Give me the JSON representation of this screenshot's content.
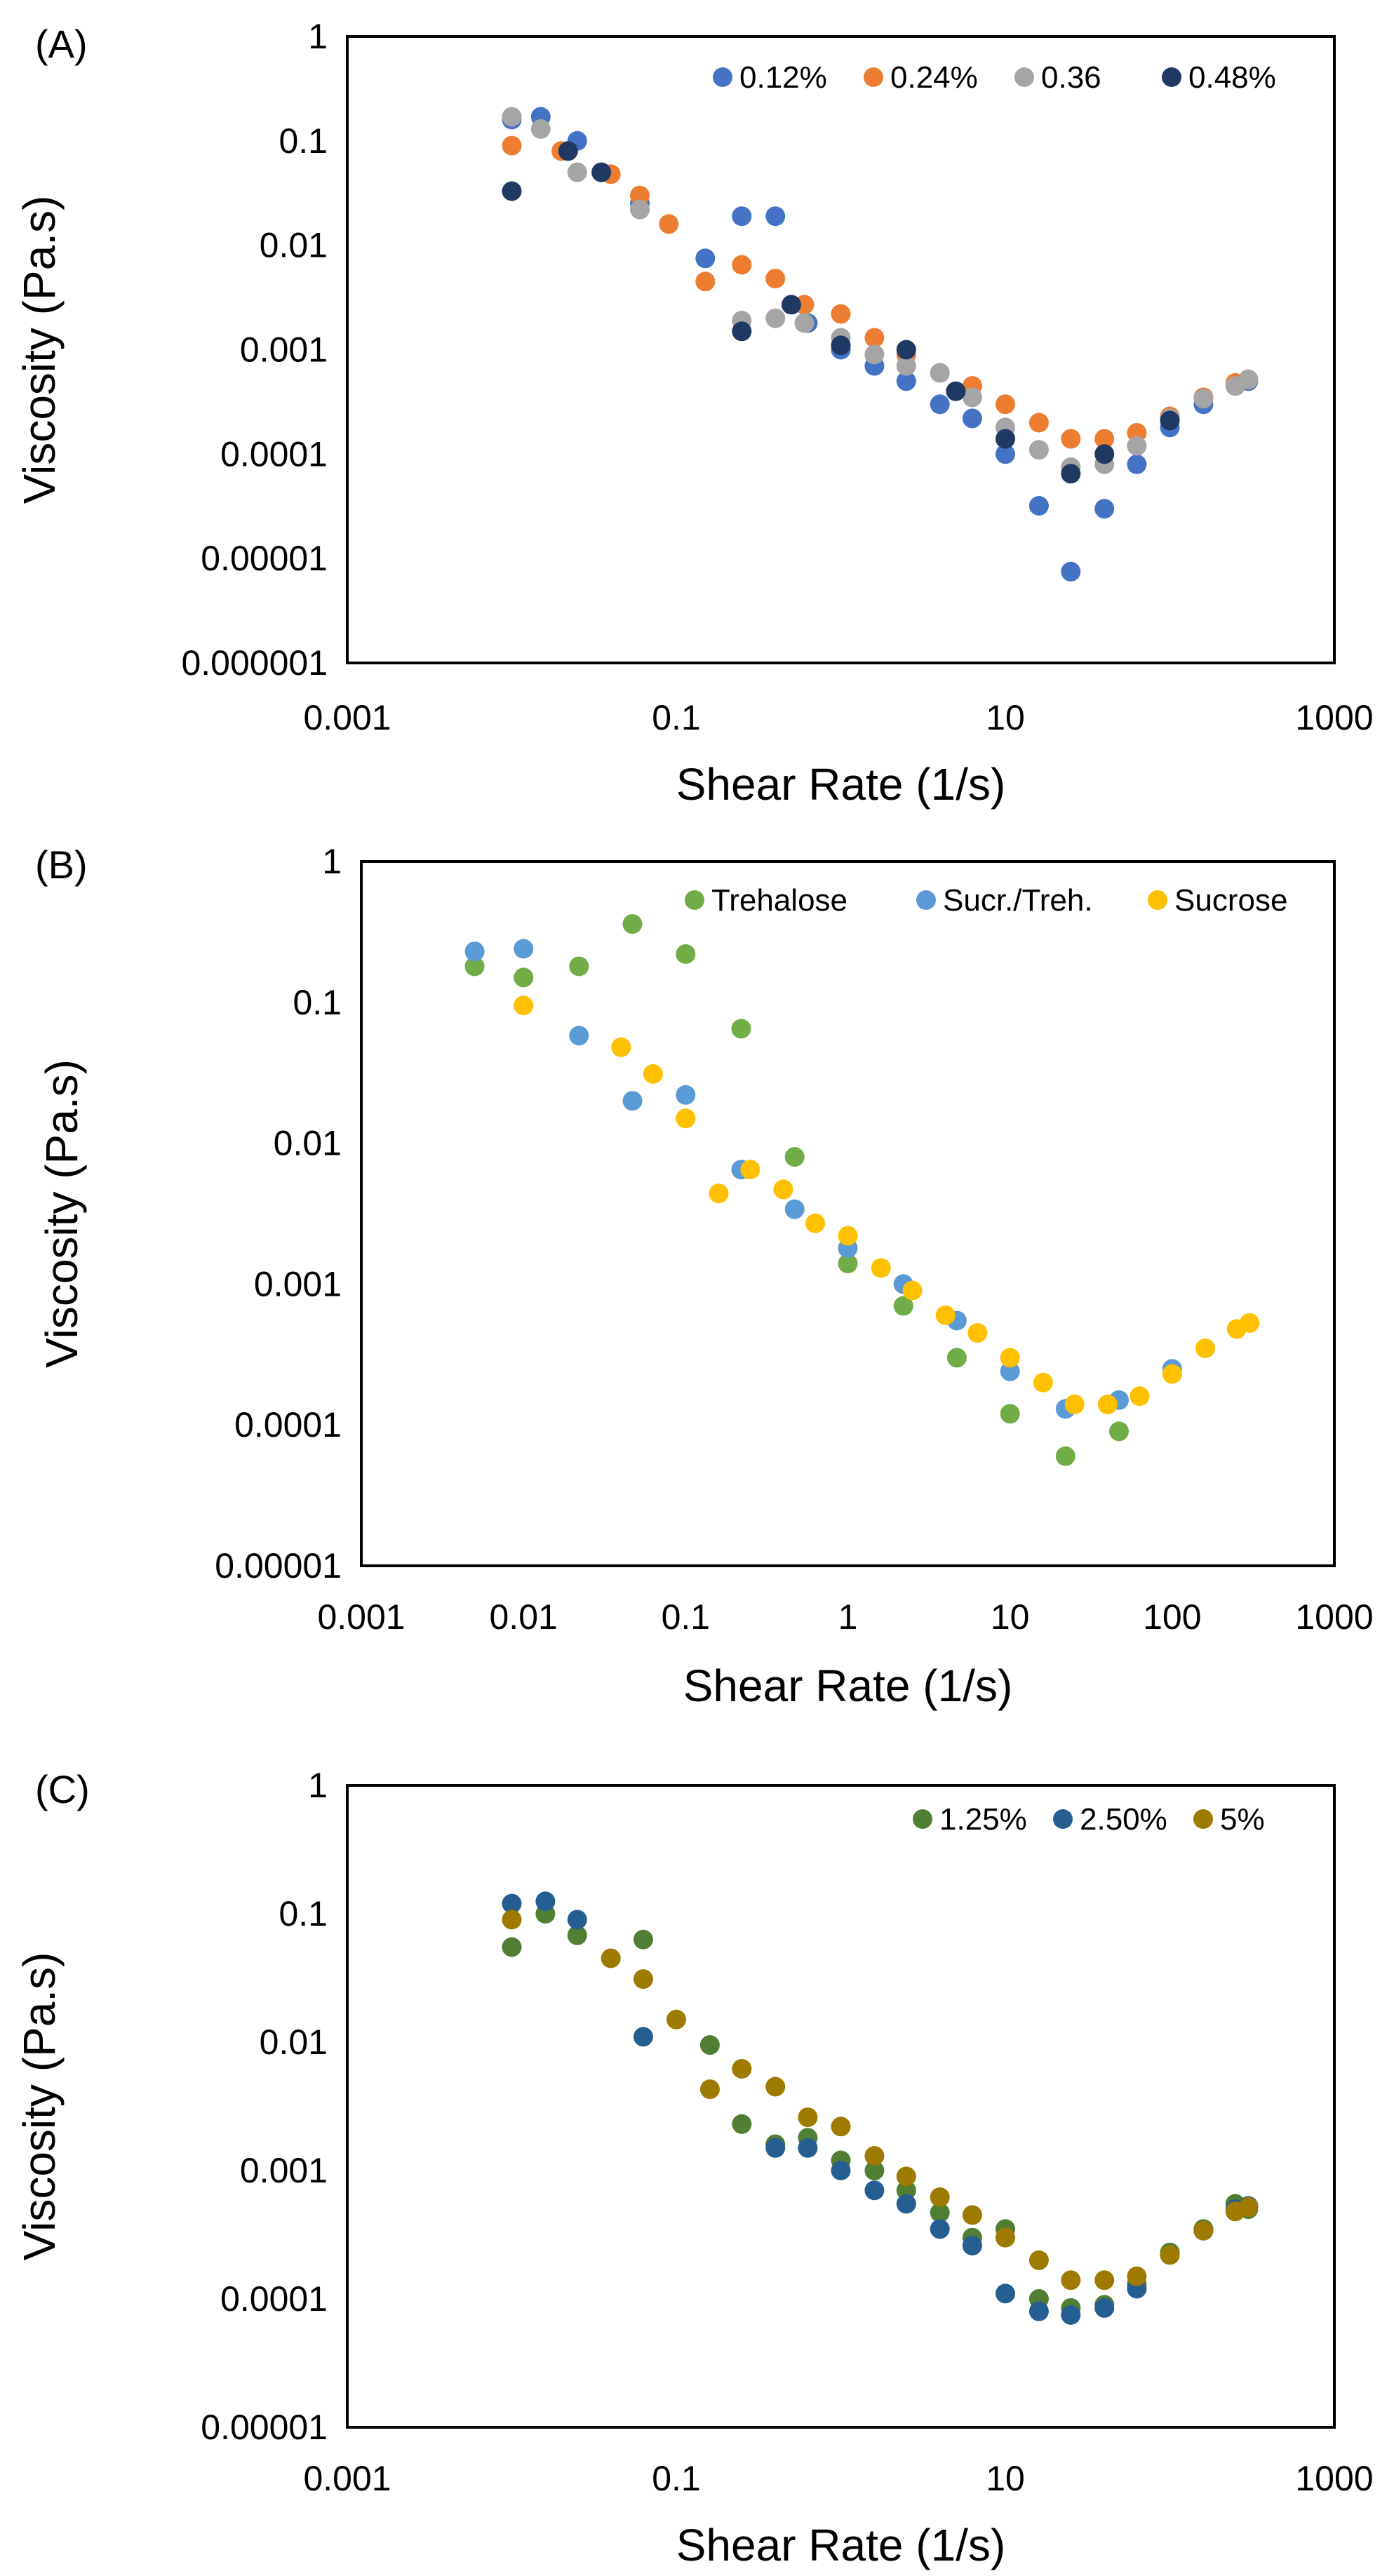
{
  "chart_data": [
    {
      "type": "scatter",
      "panel_label": "(A)",
      "xlabel": "Shear Rate (1/s)",
      "ylabel": "Viscosity (Pa.s)",
      "x_scale": "log",
      "y_scale": "log",
      "xlim": [
        0.001,
        1000
      ],
      "ylim": [
        1e-06,
        1
      ],
      "x_ticks": [
        0.001,
        0.1,
        10,
        1000
      ],
      "x_tick_labels": [
        "0.001",
        "0.1",
        "10",
        "1000"
      ],
      "y_ticks": [
        1,
        0.1,
        0.01,
        0.001,
        0.0001,
        1e-05,
        1e-06
      ],
      "y_tick_labels": [
        "1",
        "0.1",
        "0.01",
        "0.001",
        "0.0001",
        "0.00001",
        "0.000001"
      ],
      "legend_position": "top-right",
      "series": [
        {
          "name": "0.12%",
          "color": "#4472C4",
          "x": [
            0.01,
            0.015,
            0.025,
            0.06,
            0.15,
            0.25,
            0.4,
            0.63,
            1.0,
            1.6,
            2.5,
            4.0,
            6.3,
            10,
            16,
            25,
            40,
            63,
            100,
            160,
            250,
            300
          ],
          "y": [
            0.16,
            0.17,
            0.1,
            0.025,
            0.0075,
            0.019,
            0.019,
            0.0018,
            0.001,
            0.0007,
            0.0005,
            0.0003,
            0.00022,
            0.0001,
            3.2e-05,
            7.5e-06,
            3e-05,
            8e-05,
            0.00018,
            0.0003,
            0.00045,
            0.0005
          ]
        },
        {
          "name": "0.24%",
          "color": "#ED7D31",
          "x": [
            0.01,
            0.02,
            0.04,
            0.06,
            0.09,
            0.15,
            0.25,
            0.4,
            0.6,
            1.0,
            1.6,
            2.5,
            4.0,
            6.3,
            10,
            16,
            25,
            40,
            63,
            100,
            160,
            250,
            300
          ],
          "y": [
            0.09,
            0.08,
            0.048,
            0.03,
            0.016,
            0.0045,
            0.0065,
            0.0048,
            0.0027,
            0.0022,
            0.0013,
            0.0009,
            0.0006,
            0.00045,
            0.0003,
            0.0002,
            0.00014,
            0.00014,
            0.00016,
            0.00023,
            0.00035,
            0.00048,
            0.00052
          ]
        },
        {
          "name": "0.36",
          "color": "#A5A5A5",
          "x": [
            0.01,
            0.015,
            0.025,
            0.06,
            0.25,
            0.4,
            0.6,
            1.0,
            1.6,
            2.5,
            4.0,
            6.3,
            10,
            16,
            25,
            40,
            63,
            100,
            160,
            250,
            300
          ],
          "y": [
            0.17,
            0.13,
            0.05,
            0.022,
            0.0019,
            0.002,
            0.0018,
            0.0013,
            0.0009,
            0.0007,
            0.0006,
            0.00035,
            0.00018,
            0.00011,
            7.5e-05,
            8e-05,
            0.00012,
            0.00022,
            0.00034,
            0.00045,
            0.00052
          ]
        },
        {
          "name": "0.48%",
          "color": "#203864",
          "x": [
            0.01,
            0.022,
            0.035,
            0.25,
            0.5,
            1.0,
            2.5,
            5.0,
            10,
            25,
            40,
            100
          ],
          "y": [
            0.033,
            0.08,
            0.05,
            0.0015,
            0.0027,
            0.0011,
            0.001,
            0.0004,
            0.00014,
            6.5e-05,
            0.0001,
            0.00021
          ]
        }
      ]
    },
    {
      "type": "scatter",
      "panel_label": "(B)",
      "xlabel": "Shear Rate (1/s)",
      "ylabel": "Viscosity (Pa.s)",
      "x_scale": "log",
      "y_scale": "log",
      "xlim": [
        0.001,
        1000
      ],
      "ylim": [
        1e-05,
        1
      ],
      "x_ticks": [
        0.001,
        0.01,
        0.1,
        1,
        10,
        100,
        1000
      ],
      "x_tick_labels": [
        "0.001",
        "0.01",
        "0.1",
        "1",
        "10",
        "100",
        "1000"
      ],
      "y_ticks": [
        1,
        0.1,
        0.01,
        0.001,
        0.0001,
        1e-05
      ],
      "y_tick_labels": [
        "1",
        "0.1",
        "0.01",
        "0.001",
        "0.0001",
        "0.00001"
      ],
      "legend_position": "top-right",
      "series": [
        {
          "name": "Trehalose",
          "color": "#70AD47",
          "x": [
            0.005,
            0.01,
            0.022,
            0.047,
            0.1,
            0.22,
            0.47,
            1.0,
            2.2,
            4.7,
            10,
            22,
            47
          ],
          "y": [
            0.18,
            0.15,
            0.18,
            0.36,
            0.22,
            0.065,
            0.008,
            0.0014,
            0.0007,
            0.0003,
            0.00012,
            6e-05,
            9e-05
          ]
        },
        {
          "name": "Sucr./Treh.",
          "color": "#5B9BD5",
          "x": [
            0.005,
            0.01,
            0.022,
            0.047,
            0.1,
            0.22,
            0.47,
            1.0,
            2.2,
            4.7,
            10,
            22,
            47,
            100
          ],
          "y": [
            0.23,
            0.24,
            0.058,
            0.02,
            0.022,
            0.0065,
            0.0034,
            0.0018,
            0.001,
            0.00055,
            0.00024,
            0.00013,
            0.00015,
            0.00025
          ]
        },
        {
          "name": "Sucrose",
          "color": "#FFC000",
          "x": [
            0.01,
            0.04,
            0.063,
            0.1,
            0.16,
            0.25,
            0.4,
            0.63,
            1.0,
            1.6,
            2.5,
            4.0,
            6.3,
            10,
            16,
            25,
            40,
            63,
            100,
            160,
            250,
            300
          ],
          "y": [
            0.095,
            0.048,
            0.031,
            0.015,
            0.0044,
            0.0065,
            0.0047,
            0.0027,
            0.0022,
            0.0013,
            0.0009,
            0.0006,
            0.00045,
            0.0003,
            0.0002,
            0.00014,
            0.00014,
            0.00016,
            0.00023,
            0.00035,
            0.00048,
            0.00053
          ]
        }
      ]
    },
    {
      "type": "scatter",
      "panel_label": "(C)",
      "xlabel": "Shear Rate (1/s)",
      "ylabel": "Viscosity (Pa.s)",
      "x_scale": "log",
      "y_scale": "log",
      "xlim": [
        0.001,
        1000
      ],
      "ylim": [
        1e-05,
        1
      ],
      "x_ticks": [
        0.001,
        0.1,
        10,
        1000
      ],
      "x_tick_labels": [
        "0.001",
        "0.1",
        "10",
        "1000"
      ],
      "y_ticks": [
        1,
        0.1,
        0.01,
        0.001,
        0.0001,
        1e-05
      ],
      "y_tick_labels": [
        "1",
        "0.1",
        "0.01",
        "0.001",
        "0.0001",
        "0.00001"
      ],
      "legend_position": "top-right",
      "series": [
        {
          "name": "1.25%",
          "color": "#507E32",
          "x": [
            0.01,
            0.016,
            0.025,
            0.063,
            0.16,
            0.25,
            0.4,
            0.63,
            1.0,
            1.6,
            2.5,
            4.0,
            6.3,
            10,
            16,
            25,
            40,
            63,
            100,
            160,
            250,
            300
          ],
          "y": [
            0.055,
            0.1,
            0.068,
            0.063,
            0.0095,
            0.0023,
            0.0016,
            0.0018,
            0.0012,
            0.001,
            0.0007,
            0.00047,
            0.0003,
            0.00035,
            0.0001,
            8.5e-05,
            9e-05,
            0.00013,
            0.00023,
            0.00035,
            0.00055,
            0.0005
          ]
        },
        {
          "name": "2.50%",
          "color": "#255E91",
          "x": [
            0.01,
            0.016,
            0.025,
            0.063,
            0.4,
            0.63,
            1.0,
            1.6,
            2.5,
            4.0,
            6.3,
            10,
            16,
            25,
            40,
            63,
            100,
            160,
            250,
            300
          ],
          "y": [
            0.12,
            0.125,
            0.09,
            0.011,
            0.0015,
            0.0015,
            0.001,
            0.0007,
            0.00055,
            0.00035,
            0.00026,
            0.00011,
            8e-05,
            7.5e-05,
            8.5e-05,
            0.00012,
            0.00022,
            0.00034,
            0.0005,
            0.00053
          ]
        },
        {
          "name": "5%",
          "color": "#9E7A00",
          "x": [
            0.01,
            0.04,
            0.063,
            0.1,
            0.16,
            0.25,
            0.4,
            0.63,
            1.0,
            1.6,
            2.5,
            4.0,
            6.3,
            10,
            16,
            25,
            40,
            63,
            100,
            160,
            250,
            300
          ],
          "y": [
            0.09,
            0.045,
            0.031,
            0.015,
            0.0043,
            0.0062,
            0.0045,
            0.0026,
            0.0022,
            0.0013,
            0.0009,
            0.00062,
            0.00045,
            0.0003,
            0.0002,
            0.00014,
            0.00014,
            0.00015,
            0.00022,
            0.00034,
            0.00048,
            0.00052
          ]
        }
      ]
    }
  ]
}
